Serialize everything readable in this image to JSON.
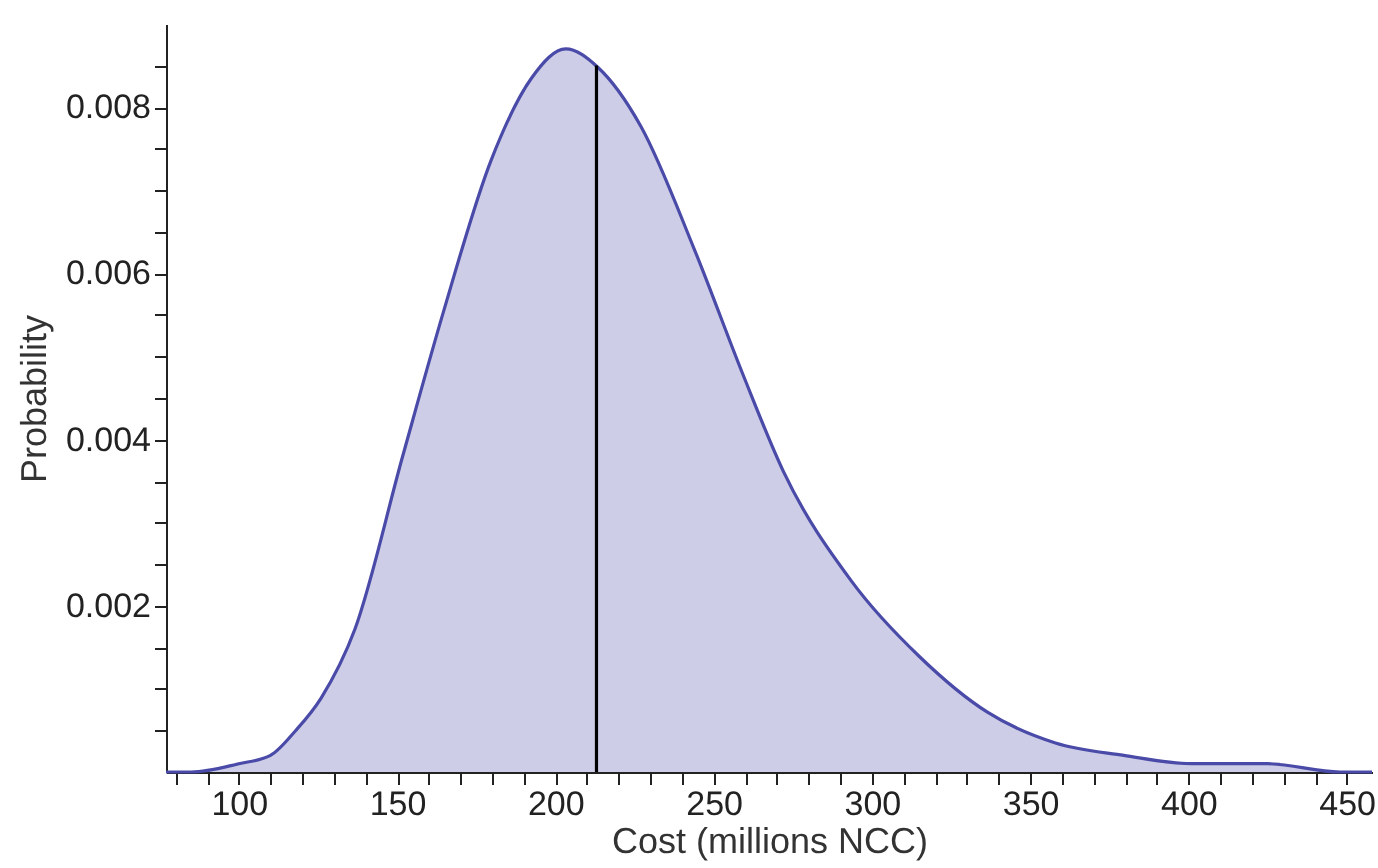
{
  "chart_data": {
    "type": "area",
    "xlabel": "Cost (millions NCC)",
    "ylabel": "Probability",
    "xlim": [
      77,
      458
    ],
    "ylim": [
      0,
      0.009
    ],
    "xticks": [
      {
        "value": 80,
        "label": null
      },
      {
        "value": 90,
        "label": null
      },
      100,
      {
        "value": 110,
        "label": null
      },
      {
        "value": 120,
        "label": null
      },
      {
        "value": 130,
        "label": null
      },
      {
        "value": 140,
        "label": null
      },
      150,
      {
        "value": 160,
        "label": null
      },
      {
        "value": 170,
        "label": null
      },
      {
        "value": 180,
        "label": null
      },
      {
        "value": 190,
        "label": null
      },
      200,
      {
        "value": 210,
        "label": null
      },
      {
        "value": 220,
        "label": null
      },
      {
        "value": 230,
        "label": null
      },
      {
        "value": 240,
        "label": null
      },
      250,
      {
        "value": 260,
        "label": null
      },
      {
        "value": 270,
        "label": null
      },
      {
        "value": 280,
        "label": null
      },
      {
        "value": 290,
        "label": null
      },
      300,
      {
        "value": 310,
        "label": null
      },
      {
        "value": 320,
        "label": null
      },
      {
        "value": 330,
        "label": null
      },
      {
        "value": 340,
        "label": null
      },
      350,
      {
        "value": 360,
        "label": null
      },
      {
        "value": 370,
        "label": null
      },
      {
        "value": 380,
        "label": null
      },
      {
        "value": 390,
        "label": null
      },
      400,
      {
        "value": 410,
        "label": null
      },
      {
        "value": 420,
        "label": null
      },
      {
        "value": 430,
        "label": null
      },
      {
        "value": 440,
        "label": null
      },
      450
    ],
    "yticks": [
      {
        "value": 0.0005,
        "label": null
      },
      {
        "value": 0.001,
        "label": null
      },
      {
        "value": 0.0015,
        "label": null
      },
      0.002,
      {
        "value": 0.0025,
        "label": null
      },
      {
        "value": 0.003,
        "label": null
      },
      {
        "value": 0.0035,
        "label": null
      },
      0.004,
      {
        "value": 0.0045,
        "label": null
      },
      {
        "value": 0.005,
        "label": null
      },
      {
        "value": 0.0055,
        "label": null
      },
      0.006,
      {
        "value": 0.0065,
        "label": null
      },
      {
        "value": 0.007,
        "label": null
      },
      {
        "value": 0.0075,
        "label": null
      },
      0.008,
      {
        "value": 0.0085,
        "label": null
      }
    ],
    "grid": false,
    "series": [
      {
        "color": "#4a4aa8",
        "x": [
          77,
          85,
          100,
          110,
          118,
          126,
          136.7,
          151.7,
          164.6,
          179.7,
          192.5,
          203.3,
          213.4,
          227,
          244,
          259.3,
          272,
          293.5,
          315,
          336.5,
          358,
          379.6,
          401,
          425,
          447.9,
          458
        ],
        "values": [
          0,
          0,
          0.0001,
          0.0002,
          0.0005,
          0.00089,
          0.00172,
          0.00379,
          0.00553,
          0.00736,
          0.00835,
          0.0087,
          0.00848,
          0.00777,
          0.00628,
          0.00478,
          0.00362,
          0.0023,
          0.00139,
          0.00072,
          0.00035,
          0.0002,
          0.0001,
          0.0001,
          0,
          0
        ]
      },
      {
        "type": "line",
        "color": "#000000",
        "x": [
          213,
          213
        ],
        "values": [
          0,
          0.0085
        ]
      }
    ]
  }
}
